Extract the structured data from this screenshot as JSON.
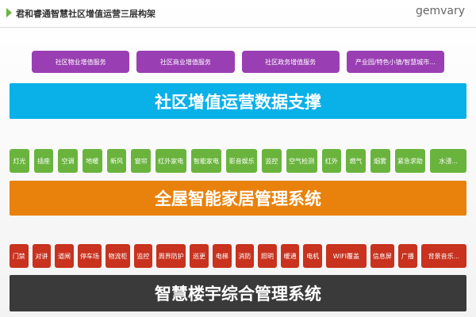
{
  "header": {
    "title": "君和睿通智慧社区增值运营三层构架",
    "logo": "gemvary"
  },
  "layers": [
    {
      "items": [
        "社区物业增值服务",
        "社区商业增值服务",
        "社区政务增值服务",
        "产业园/特色小镇/智慧城市..."
      ],
      "bar": "社区增值运营数据支撑"
    },
    {
      "items": [
        "灯光",
        "插座",
        "空调",
        "地暖",
        "新风",
        "窗帘",
        "红外家电",
        "智能家电",
        "影音娱乐",
        "监控",
        "空气检测",
        "红外",
        "燃气",
        "烟雾",
        "紧急求助",
        "水浸..."
      ],
      "bar": "全屋智能家居管理系统"
    },
    {
      "items": [
        "门禁",
        "对讲",
        "道闸",
        "停车场",
        "物流柜",
        "监控",
        "周界防护",
        "巡更",
        "电梯",
        "消防",
        "照明",
        "暖通",
        "电机",
        "WIFI覆盖",
        "信息屏",
        "广播",
        "背景音乐..."
      ],
      "bar": "智慧楼宇综合管理系统"
    }
  ]
}
